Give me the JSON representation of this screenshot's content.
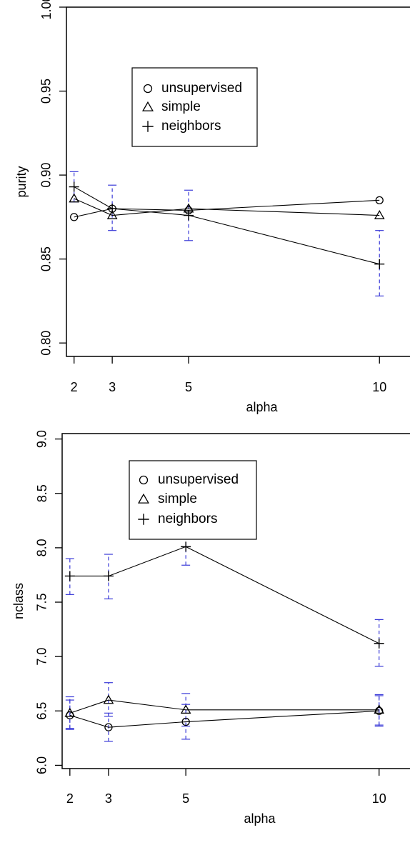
{
  "colors": {
    "error_bar": "#3b3bd8",
    "line": "#000000",
    "background": "#ffffff"
  },
  "chart_data": [
    {
      "type": "line",
      "title": "",
      "xlabel": "alpha",
      "ylabel": "purity",
      "xlim": [
        1.8,
        10.8
      ],
      "ylim": [
        0.792,
        1.0
      ],
      "xticks": [
        2,
        3,
        5,
        10
      ],
      "yticks": [
        0.8,
        0.85,
        0.9,
        0.95,
        1.0
      ],
      "ytick_labels": [
        "0.80",
        "0.85",
        "0.90",
        "0.95",
        "1.00"
      ],
      "legend": {
        "position": "top-center",
        "entries": [
          {
            "name": "unsupervised",
            "marker": "circle"
          },
          {
            "name": "simple",
            "marker": "triangle"
          },
          {
            "name": "neighbors",
            "marker": "plus"
          }
        ]
      },
      "x": [
        2,
        3,
        5,
        10
      ],
      "series": [
        {
          "name": "unsupervised",
          "marker": "circle",
          "values": [
            0.875,
            0.88,
            0.879,
            0.885
          ],
          "err_low": [
            null,
            null,
            null,
            null
          ],
          "err_high": [
            null,
            null,
            null,
            null
          ]
        },
        {
          "name": "simple",
          "marker": "triangle",
          "values": [
            0.886,
            0.876,
            0.88,
            0.876
          ],
          "err_low": [
            null,
            null,
            null,
            null
          ],
          "err_high": [
            null,
            null,
            null,
            null
          ]
        },
        {
          "name": "neighbors",
          "marker": "plus",
          "values": [
            0.893,
            0.88,
            0.876,
            0.847
          ],
          "err_low": [
            0.884,
            0.867,
            0.861,
            0.828
          ],
          "err_high": [
            0.902,
            0.894,
            0.891,
            0.867
          ]
        }
      ]
    },
    {
      "type": "line",
      "title": "",
      "xlabel": "alpha",
      "ylabel": "nclass",
      "xlim": [
        1.8,
        10.8
      ],
      "ylim": [
        5.97,
        9.05
      ],
      "xticks": [
        2,
        3,
        5,
        10
      ],
      "yticks": [
        6.0,
        6.5,
        7.0,
        7.5,
        8.0,
        8.5,
        9.0
      ],
      "ytick_labels": [
        "6.0",
        "6.5",
        "7.0",
        "7.5",
        "8.0",
        "8.5",
        "9.0"
      ],
      "legend": {
        "position": "top-center",
        "entries": [
          {
            "name": "unsupervised",
            "marker": "circle"
          },
          {
            "name": "simple",
            "marker": "triangle"
          },
          {
            "name": "neighbors",
            "marker": "plus"
          }
        ]
      },
      "x": [
        2,
        3,
        5,
        10
      ],
      "series": [
        {
          "name": "unsupervised",
          "marker": "circle",
          "values": [
            6.46,
            6.35,
            6.4,
            6.5
          ],
          "err_low": [
            6.33,
            6.22,
            6.24,
            6.37
          ],
          "err_high": [
            6.6,
            6.48,
            6.56,
            6.64
          ]
        },
        {
          "name": "simple",
          "marker": "triangle",
          "values": [
            6.48,
            6.6,
            6.51,
            6.51
          ],
          "err_low": [
            6.34,
            6.45,
            6.36,
            6.36
          ],
          "err_high": [
            6.63,
            6.76,
            6.66,
            6.65
          ]
        },
        {
          "name": "neighbors",
          "marker": "plus",
          "values": [
            7.74,
            7.74,
            8.01,
            7.12
          ],
          "err_low": [
            7.57,
            7.53,
            7.84,
            6.91
          ],
          "err_high": [
            7.9,
            7.94,
            8.18,
            7.34
          ]
        }
      ]
    }
  ]
}
